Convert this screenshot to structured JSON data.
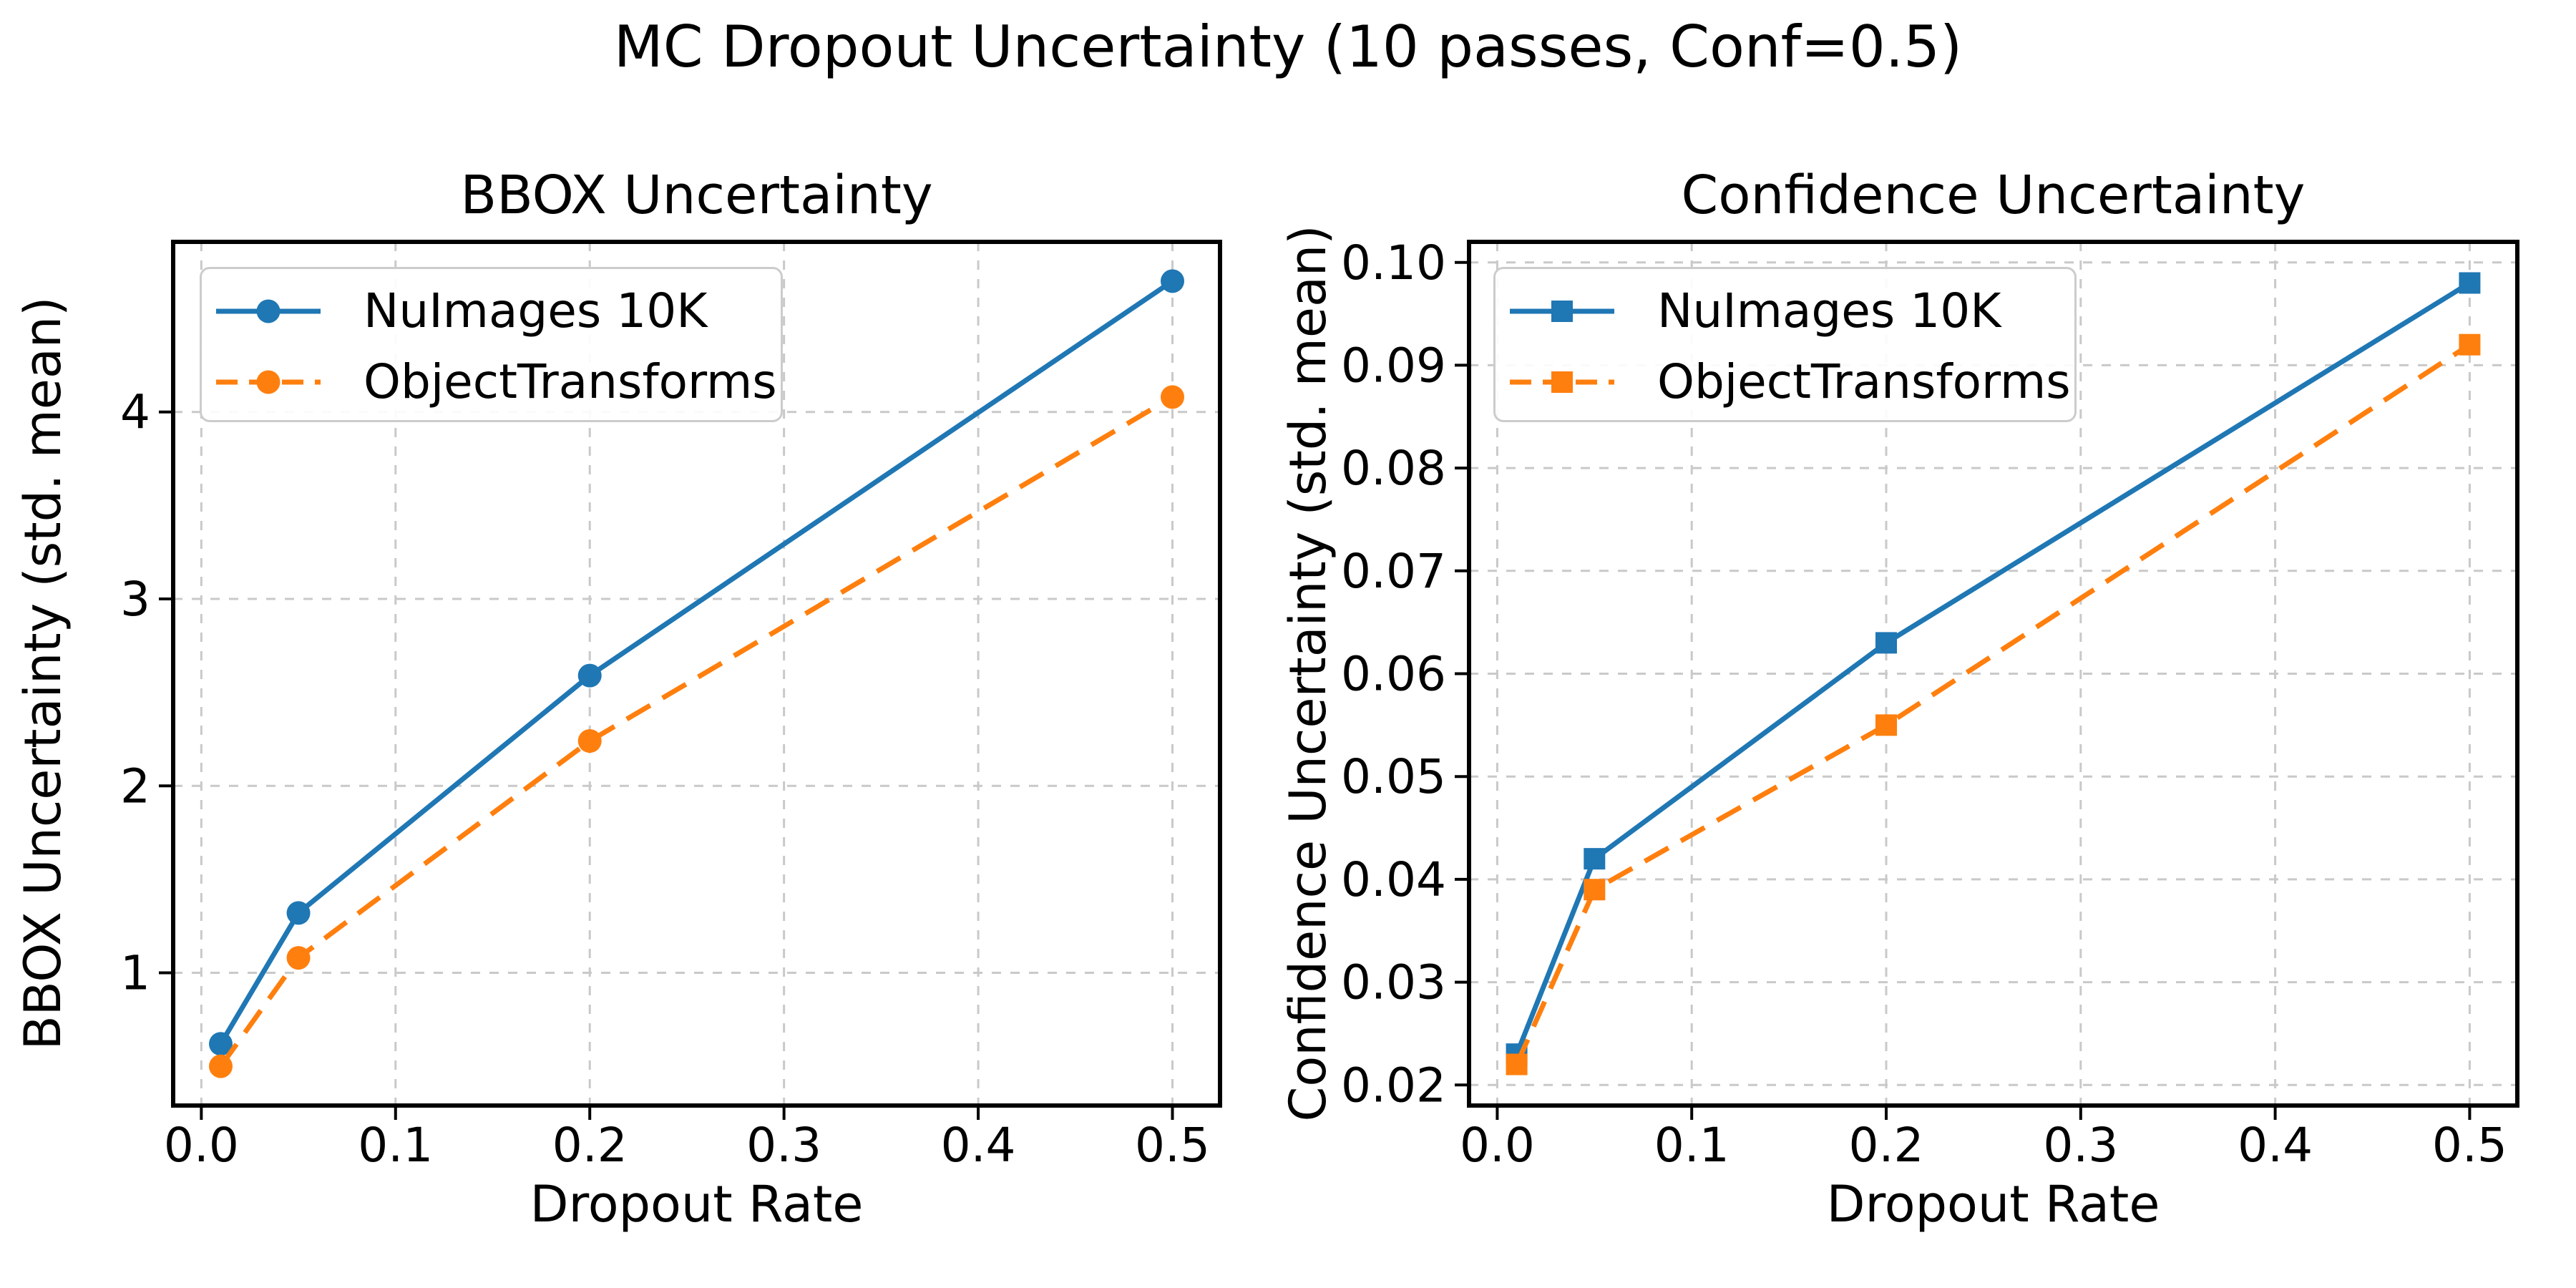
{
  "figure": {
    "suptitle": "MC Dropout Uncertainty (10 passes, Conf=0.5)",
    "background": "#ffffff"
  },
  "colors": {
    "series_blue": "#1f77b4",
    "series_orange": "#ff7f0e",
    "grid": "#c9c9c9",
    "spine": "#000000",
    "legend_border": "#cccccc",
    "text": "#000000"
  },
  "chart_data": [
    {
      "type": "line",
      "title": "BBOX Uncertainty",
      "xlabel": "Dropout Rate",
      "ylabel": "BBOX Uncertainty (std. mean)",
      "x": [
        0.01,
        0.05,
        0.2,
        0.5
      ],
      "series": [
        {
          "name": "NuImages 10K",
          "values": [
            0.62,
            1.32,
            2.59,
            4.7
          ],
          "color": "#1f77b4",
          "marker": "circle",
          "linestyle": "solid"
        },
        {
          "name": "ObjectTransforms",
          "values": [
            0.5,
            1.08,
            2.24,
            4.08
          ],
          "color": "#ff7f0e",
          "marker": "circle",
          "linestyle": "dashed"
        }
      ],
      "xlim": [
        -0.0145,
        0.5245
      ],
      "ylim": [
        0.29,
        4.91
      ],
      "xticks": [
        0.0,
        0.1,
        0.2,
        0.3,
        0.4,
        0.5
      ],
      "xtick_labels": [
        "0.0",
        "0.1",
        "0.2",
        "0.3",
        "0.4",
        "0.5"
      ],
      "yticks": [
        1,
        2,
        3,
        4
      ],
      "ytick_labels": [
        "1",
        "2",
        "3",
        "4"
      ],
      "grid": true,
      "legend_position": "upper-left"
    },
    {
      "type": "line",
      "title": "Confidence Uncertainty",
      "xlabel": "Dropout Rate",
      "ylabel": "Confidence Uncertainty (std. mean)",
      "x": [
        0.01,
        0.05,
        0.2,
        0.5
      ],
      "series": [
        {
          "name": "NuImages 10K",
          "values": [
            0.023,
            0.042,
            0.063,
            0.098
          ],
          "color": "#1f77b4",
          "marker": "square",
          "linestyle": "solid"
        },
        {
          "name": "ObjectTransforms",
          "values": [
            0.022,
            0.039,
            0.055,
            0.092
          ],
          "color": "#ff7f0e",
          "marker": "square",
          "linestyle": "dashed"
        }
      ],
      "xlim": [
        -0.0145,
        0.5245
      ],
      "ylim": [
        0.018,
        0.102
      ],
      "xticks": [
        0.0,
        0.1,
        0.2,
        0.3,
        0.4,
        0.5
      ],
      "xtick_labels": [
        "0.0",
        "0.1",
        "0.2",
        "0.3",
        "0.4",
        "0.5"
      ],
      "yticks": [
        0.02,
        0.03,
        0.04,
        0.05,
        0.06,
        0.07,
        0.08,
        0.09,
        0.1
      ],
      "ytick_labels": [
        "0.02",
        "0.03",
        "0.04",
        "0.05",
        "0.06",
        "0.07",
        "0.08",
        "0.09",
        "0.10"
      ],
      "grid": true,
      "legend_position": "upper-left"
    }
  ]
}
